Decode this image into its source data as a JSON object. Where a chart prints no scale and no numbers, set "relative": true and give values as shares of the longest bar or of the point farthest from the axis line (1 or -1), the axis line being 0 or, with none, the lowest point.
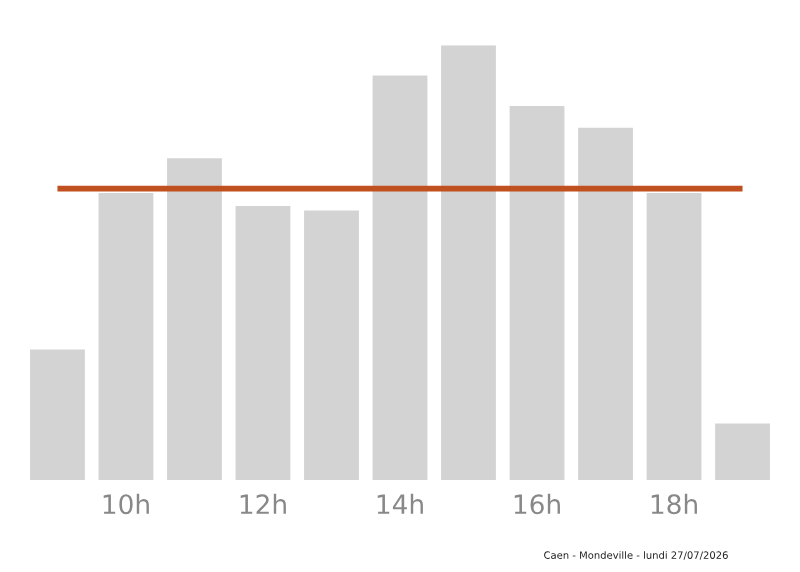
{
  "chart_data": {
    "type": "bar",
    "relative": true,
    "categories": [
      null,
      "10h",
      null,
      "12h",
      null,
      "14h",
      null,
      "16h",
      null,
      "18h",
      null
    ],
    "values": [
      0.3,
      0.66,
      0.74,
      0.63,
      0.62,
      0.93,
      1,
      0.86,
      0.81,
      0.66,
      0.13
    ],
    "color": "#d3d3d3",
    "ref_lines": [
      {
        "axis": "y",
        "value": 0.67,
        "color": "#c0501f"
      }
    ],
    "annotations": [
      "Caen - Mondeville - lundi 27/07/2026"
    ],
    "grid": false,
    "legend": false
  }
}
